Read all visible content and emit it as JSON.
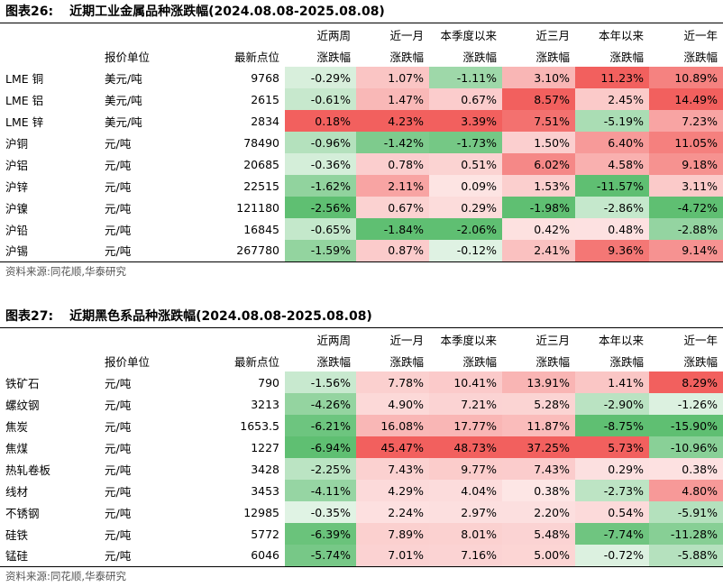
{
  "columns": [
    "近两周",
    "近一月",
    "本季度以来",
    "近三月",
    "本年以来",
    "近一年"
  ],
  "header_line2": {
    "unit": "报价单位",
    "latest": "最新点位",
    "chg": "涨跌幅"
  },
  "colors": {
    "pos_max": "#f2605e",
    "neg_max": "#5fbf72",
    "neutral": "#ffffff"
  },
  "tables": [
    {
      "label": "图表26:",
      "title": "近期工业金属品种涨跌幅(2024.08.08-2025.08.08)",
      "source": "资料来源:同花顺,华泰研究",
      "rows": [
        {
          "name": "LME 铜",
          "unit": "美元/吨",
          "latest": "9768",
          "vals": [
            -0.29,
            1.07,
            -1.11,
            3.1,
            11.23,
            10.89
          ]
        },
        {
          "name": "LME 铝",
          "unit": "美元/吨",
          "latest": "2615",
          "vals": [
            -0.61,
            1.47,
            0.67,
            8.57,
            2.45,
            14.49
          ]
        },
        {
          "name": "LME 锌",
          "unit": "美元/吨",
          "latest": "2834",
          "vals": [
            0.18,
            4.23,
            3.39,
            7.51,
            -5.19,
            7.23
          ]
        },
        {
          "name": "沪铜",
          "unit": "元/吨",
          "latest": "78490",
          "vals": [
            -0.96,
            -1.42,
            -1.73,
            1.5,
            6.4,
            11.05
          ]
        },
        {
          "name": "沪铝",
          "unit": "元/吨",
          "latest": "20685",
          "vals": [
            -0.36,
            0.78,
            0.51,
            6.02,
            4.58,
            9.18
          ]
        },
        {
          "name": "沪锌",
          "unit": "元/吨",
          "latest": "22515",
          "vals": [
            -1.62,
            2.11,
            0.09,
            1.53,
            -11.57,
            3.11
          ]
        },
        {
          "name": "沪镍",
          "unit": "元/吨",
          "latest": "121180",
          "vals": [
            -2.56,
            0.67,
            0.29,
            -1.98,
            -2.86,
            -4.72
          ]
        },
        {
          "name": "沪铅",
          "unit": "元/吨",
          "latest": "16845",
          "vals": [
            -0.65,
            -1.84,
            -2.06,
            0.42,
            0.48,
            -2.88
          ]
        },
        {
          "name": "沪锡",
          "unit": "元/吨",
          "latest": "267780",
          "vals": [
            -1.59,
            0.87,
            -0.12,
            2.41,
            9.36,
            9.14
          ]
        }
      ]
    },
    {
      "label": "图表27:",
      "title": "近期黑色系品种涨跌幅(2024.08.08-2025.08.08)",
      "source": "资料来源:同花顺,华泰研究",
      "rows": [
        {
          "name": "铁矿石",
          "unit": "元/吨",
          "latest": "790",
          "vals": [
            -1.56,
            7.78,
            10.41,
            13.91,
            1.41,
            8.29
          ]
        },
        {
          "name": "螺纹钢",
          "unit": "元/吨",
          "latest": "3213",
          "vals": [
            -4.26,
            4.9,
            7.21,
            5.28,
            -2.9,
            -1.26
          ]
        },
        {
          "name": "焦炭",
          "unit": "元/吨",
          "latest": "1653.5",
          "vals": [
            -6.21,
            16.08,
            17.77,
            11.87,
            -8.75,
            -15.9
          ]
        },
        {
          "name": "焦煤",
          "unit": "元/吨",
          "latest": "1227",
          "vals": [
            -6.94,
            45.47,
            48.73,
            37.25,
            5.73,
            -10.96
          ]
        },
        {
          "name": "热轧卷板",
          "unit": "元/吨",
          "latest": "3428",
          "vals": [
            -2.25,
            7.43,
            9.77,
            7.43,
            0.29,
            0.38
          ]
        },
        {
          "name": "线材",
          "unit": "元/吨",
          "latest": "3453",
          "vals": [
            -4.11,
            4.29,
            4.04,
            0.38,
            -2.73,
            4.8
          ]
        },
        {
          "name": "不锈钢",
          "unit": "元/吨",
          "latest": "12985",
          "vals": [
            -0.35,
            2.24,
            2.97,
            2.2,
            0.54,
            -5.91
          ]
        },
        {
          "name": "硅铁",
          "unit": "元/吨",
          "latest": "5772",
          "vals": [
            -6.39,
            7.89,
            8.01,
            5.48,
            -7.74,
            -11.28
          ]
        },
        {
          "name": "锰硅",
          "unit": "元/吨",
          "latest": "6046",
          "vals": [
            -5.74,
            7.01,
            7.16,
            5.0,
            -0.72,
            -5.88
          ]
        }
      ]
    }
  ]
}
